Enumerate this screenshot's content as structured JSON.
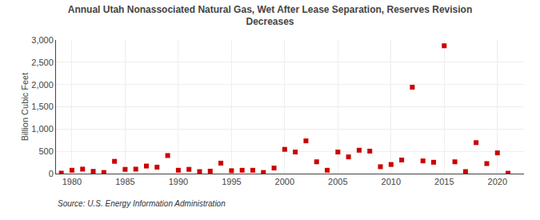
{
  "chart_data": {
    "type": "scatter",
    "title": "Annual Utah Nonassociated Natural Gas, Wet After Lease Separation, Reserves Revision\nDecreases",
    "ylabel": "Billion Cubic Feet",
    "source": "Source: U.S. Energy Information Administration",
    "x": [
      1979,
      1980,
      1981,
      1982,
      1983,
      1984,
      1985,
      1986,
      1987,
      1988,
      1989,
      1990,
      1991,
      1992,
      1993,
      1994,
      1995,
      1996,
      1997,
      1998,
      1999,
      2000,
      2001,
      2002,
      2003,
      2004,
      2005,
      2006,
      2007,
      2008,
      2009,
      2010,
      2011,
      2012,
      2013,
      2014,
      2015,
      2016,
      2017,
      2018,
      2019,
      2020,
      2021
    ],
    "values": [
      10,
      75,
      100,
      50,
      25,
      275,
      95,
      100,
      170,
      145,
      405,
      75,
      95,
      45,
      55,
      235,
      65,
      75,
      75,
      25,
      125,
      545,
      485,
      735,
      265,
      75,
      485,
      375,
      525,
      505,
      155,
      205,
      305,
      1940,
      285,
      255,
      2870,
      265,
      45,
      695,
      225,
      465,
      8
    ],
    "color": "#cc0000",
    "marker": "square",
    "xlim": [
      1978.5,
      2022.5
    ],
    "xticks": [
      1980,
      1985,
      1990,
      1995,
      2000,
      2005,
      2010,
      2015,
      2020
    ],
    "ylim": [
      0,
      3000
    ],
    "yticks": [
      0,
      500,
      {
        "value": 1000,
        "label": "1,000"
      },
      {
        "value": 1500,
        "label": "1,500"
      },
      {
        "value": 2000,
        "label": "2,000"
      },
      {
        "value": 2500,
        "label": "2,500"
      },
      {
        "value": 3000,
        "label": "3,000"
      }
    ],
    "grid": true
  }
}
